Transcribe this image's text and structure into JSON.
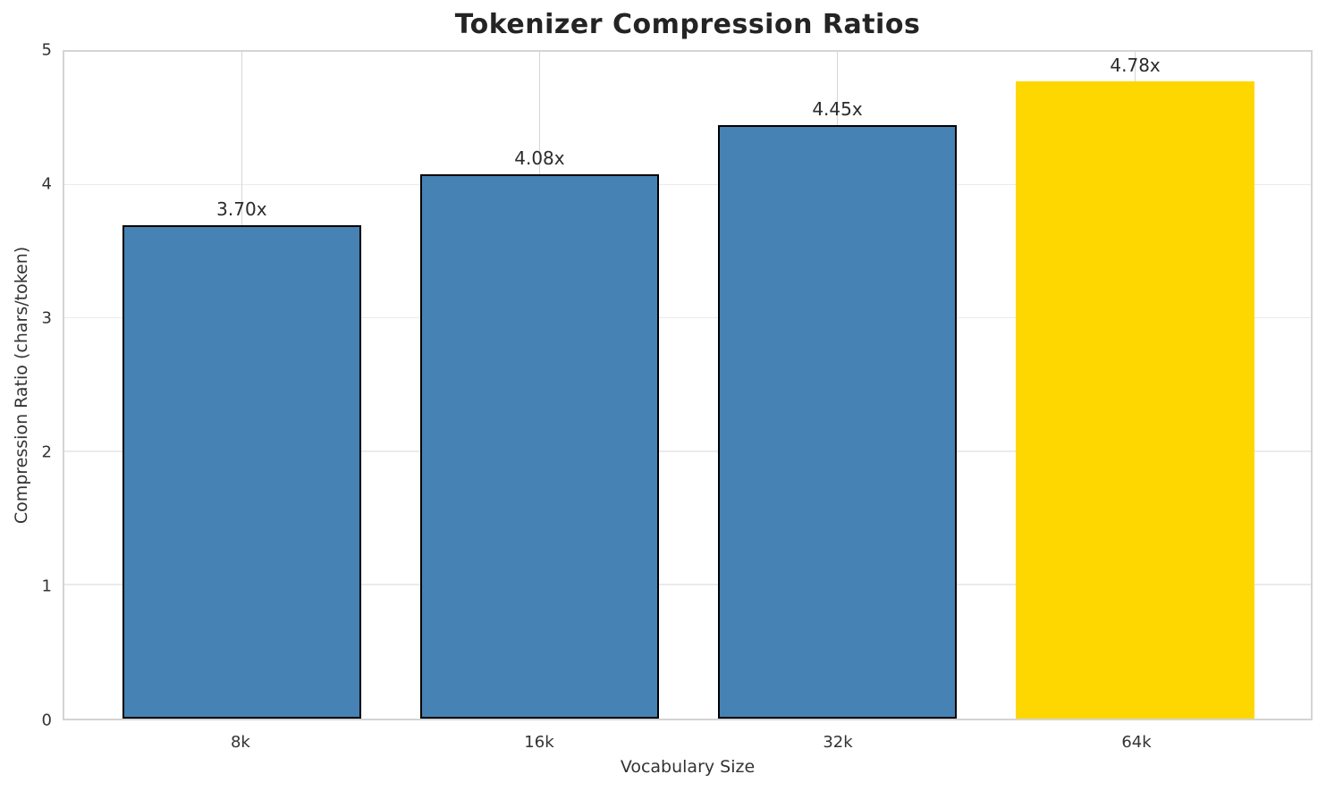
{
  "chart_data": {
    "type": "bar",
    "title": "Tokenizer Compression Ratios",
    "xlabel": "Vocabulary Size",
    "ylabel": "Compression Ratio (chars/token)",
    "categories": [
      "8k",
      "16k",
      "32k",
      "64k"
    ],
    "values": [
      3.7,
      4.08,
      4.45,
      4.78
    ],
    "bar_labels": [
      "3.70x",
      "4.08x",
      "4.45x",
      "4.78x"
    ],
    "bar_colors": [
      "#4682b4",
      "#4682b4",
      "#4682b4",
      "#ffd700"
    ],
    "bar_edge_colors": [
      "#000000",
      "#000000",
      "#000000",
      "none"
    ],
    "ylim": [
      0,
      5
    ],
    "yticks": [
      0,
      1,
      2,
      3,
      4,
      5
    ],
    "grid": "on",
    "legend_position": "none"
  }
}
